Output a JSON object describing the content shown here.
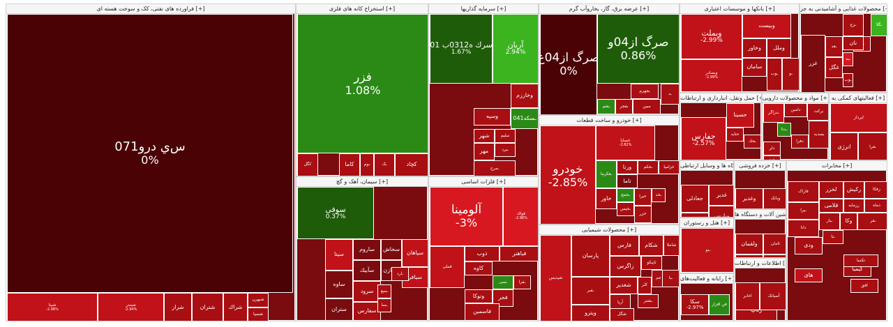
{
  "colors": {
    "deep_red": "#4a0204",
    "dark_red": "#7a0b0f",
    "red": "#a80e12",
    "mid_red": "#c01218",
    "bright_red": "#d81820",
    "dark_green": "#1f5c0a",
    "green": "#2b8a16",
    "bright_green": "#3bb41f",
    "neutral": "#8a0a0e"
  },
  "sectors": [
    {
      "title": "فراورده های نفتی، کک و سوخت هسته ای [+]"
    },
    {
      "title": "استخراج کانه های فلزی [+]"
    },
    {
      "title": "سرمایه گذاریها [+]"
    },
    {
      "title": "عرضه برق، گاز، بخاروآب گرم [+]"
    },
    {
      "title": "بانکها و موسسات اعتباری [+]"
    },
    {
      "title": "محصولات غذایی و آشامیدنی به جز [+]"
    },
    {
      "title": "سیمان، آهک و گچ [+]"
    },
    {
      "title": "فلزات اساسی [+]"
    },
    {
      "title": "خودرو و ساخت قطعات [+]"
    },
    {
      "title": "حمل ونقل، انبارداری و ارتباطات [+]"
    },
    {
      "title": "مواد و محصولات دارویی [+]"
    },
    {
      "title": "فعالیتهای کمکی به [+]"
    },
    {
      "title": "محصولات شیمیایی [+]"
    },
    {
      "title": "ساخت دستگاه ها و وسایل ارتباطی [+]"
    },
    {
      "title": "هتل و رستوران [+]"
    },
    {
      "title": "خرده فروشی [+]"
    },
    {
      "title": "ماشین آلات و دستگاه ها [+]"
    },
    {
      "title": "رایانه و فعالیت‌های [+]"
    },
    {
      "title": "اطلاعات و ارتباطات [+]"
    },
    {
      "title": "مخابرات [+]"
    }
  ],
  "tiles": [
    {
      "name": "س‌ي درو071",
      "pct": "0%"
    },
    {
      "name": "شپنا",
      "pct": "-2.98%"
    },
    {
      "name": "شبندر",
      "pct": "-2.94%"
    },
    {
      "name": "شراز",
      "pct": ""
    },
    {
      "name": "شتران",
      "pct": ""
    },
    {
      "name": "شراك",
      "pct": ""
    },
    {
      "name": "شبهرن",
      "pct": ""
    },
    {
      "name": "شسپا",
      "pct": ""
    },
    {
      "name": "فزر",
      "pct": "1.08%"
    },
    {
      "name": "کگل",
      "pct": ""
    },
    {
      "name": "کاما",
      "pct": ""
    },
    {
      "name": "کچاد",
      "pct": ""
    },
    {
      "name": "ـک",
      "pct": ""
    },
    {
      "name": "ـوم",
      "pct": ""
    },
    {
      "name": "سرك ه0312ب 01",
      "pct": "1.67%"
    },
    {
      "name": "آریان",
      "pct": "2.94%"
    },
    {
      "name": "وخارزم",
      "pct": ""
    },
    {
      "name": "وسپه",
      "pct": ""
    },
    {
      "name": "ـسکه041",
      "pct": ""
    },
    {
      "name": "شهر",
      "pct": ""
    },
    {
      "name": "سلیم",
      "pct": ""
    },
    {
      "name": "مهر",
      "pct": ""
    },
    {
      "name": "ـیرد",
      "pct": ""
    },
    {
      "name": "ـمرج",
      "pct": ""
    },
    {
      "name": "صرگ ‌از04غ",
      "pct": "0%"
    },
    {
      "name": "صرگ ‌از04و",
      "pct": "0.86%"
    },
    {
      "name": "بجهرم",
      "pct": ""
    },
    {
      "name": "بفجر",
      "pct": ""
    },
    {
      "name": "مبین",
      "pct": ""
    },
    {
      "name": "ـشم",
      "pct": ""
    },
    {
      "name": "ـد",
      "pct": ""
    },
    {
      "name": "وبملت",
      "pct": "-2.99%"
    },
    {
      "name": "وبیست",
      "pct": ""
    },
    {
      "name": "وخاور",
      "pct": ""
    },
    {
      "name": "وملل",
      "pct": ""
    },
    {
      "name": "سامان",
      "pct": ""
    },
    {
      "name": "وبصادر",
      "pct": "-2.99%"
    },
    {
      "name": "ـو",
      "pct": ""
    },
    {
      "name": "ـوب",
      "pct": ""
    },
    {
      "name": "غزر",
      "pct": ""
    },
    {
      "name": "ـزع",
      "pct": ""
    },
    {
      "name": "ـگلا",
      "pct": ""
    },
    {
      "name": "ـغا",
      "pct": ""
    },
    {
      "name": "غگل",
      "pct": ""
    },
    {
      "name": "نان",
      "pct": ""
    },
    {
      "name": "ـعد",
      "pct": ""
    },
    {
      "name": "ـبه",
      "pct": ""
    },
    {
      "name": "ـوب",
      "pct": ""
    },
    {
      "name": "سوفی",
      "pct": "0.37%"
    },
    {
      "name": "سیتا",
      "pct": ""
    },
    {
      "name": "ساروم",
      "pct": ""
    },
    {
      "name": "سخاش",
      "pct": ""
    },
    {
      "name": "سپاهان",
      "pct": ""
    },
    {
      "name": "ساوه",
      "pct": ""
    },
    {
      "name": "سرود",
      "pct": ""
    },
    {
      "name": "سمازن",
      "pct": ""
    },
    {
      "name": "سفارس",
      "pct": ""
    },
    {
      "name": "ستران",
      "pct": ""
    },
    {
      "name": "سآبیك",
      "pct": ""
    },
    {
      "name": "سیافر",
      "pct": ""
    },
    {
      "name": "ـسع",
      "pct": ""
    },
    {
      "name": "ـارد",
      "pct": ""
    },
    {
      "name": "ـسا",
      "pct": ""
    },
    {
      "name": "فولاد",
      "pct": "-2.96%"
    },
    {
      "name": "آلومينا",
      "pct": "-3%"
    },
    {
      "name": "ذوب",
      "pct": ""
    },
    {
      "name": "فباهنر",
      "pct": ""
    },
    {
      "name": "فملی",
      "pct": ""
    },
    {
      "name": "کاوه",
      "pct": ""
    },
    {
      "name": "ونوکا",
      "pct": ""
    },
    {
      "name": "فجر",
      "pct": ""
    },
    {
      "name": "فاسمین",
      "pct": ""
    },
    {
      "name": "ـفرا",
      "pct": ""
    },
    {
      "name": "ـسی",
      "pct": ""
    },
    {
      "name": "خودرو",
      "pct": "-2.85%"
    },
    {
      "name": "خساپا",
      "pct": "-2.82%"
    },
    {
      "name": "ـعکرما",
      "pct": ""
    },
    {
      "name": "ـخکم",
      "pct": ""
    },
    {
      "name": "خزامیا",
      "pct": ""
    },
    {
      "name": "ورنا",
      "pct": ""
    },
    {
      "name": "تاما",
      "pct": ""
    },
    {
      "name": "خاور",
      "pct": ""
    },
    {
      "name": "خیرا",
      "pct": ""
    },
    {
      "name": "ـخمح",
      "pct": ""
    },
    {
      "name": "خزر",
      "pct": ""
    },
    {
      "name": "ـخپس",
      "pct": ""
    },
    {
      "name": "ـخد",
      "pct": ""
    },
    {
      "name": "حفارس",
      "pct": "-2.57%"
    },
    {
      "name": "حسینا",
      "pct": ""
    },
    {
      "name": "حتاید",
      "pct": ""
    },
    {
      "name": "ـحك",
      "pct": ""
    },
    {
      "name": "ـدزاگر",
      "pct": ""
    },
    {
      "name": "دامین",
      "pct": ""
    },
    {
      "name": "برکت",
      "pct": ""
    },
    {
      "name": "دفرا",
      "pct": ""
    },
    {
      "name": "دلر",
      "pct": ""
    },
    {
      "name": "پخش",
      "pct": ""
    },
    {
      "name": "ـدتا",
      "pct": ""
    },
    {
      "name": "بسدید",
      "pct": ""
    },
    {
      "name": "اپرداز",
      "pct": ""
    },
    {
      "name": "ـفرا",
      "pct": ""
    },
    {
      "name": "انرژی",
      "pct": ""
    },
    {
      "name": "پارسان",
      "pct": ""
    },
    {
      "name": "شپدیس",
      "pct": ""
    },
    {
      "name": "فارس",
      "pct": ""
    },
    {
      "name": "شکام",
      "pct": ""
    },
    {
      "name": "شاملا",
      "pct": ""
    },
    {
      "name": "زاگرس",
      "pct": ""
    },
    {
      "name": "تاپیکو",
      "pct": ""
    },
    {
      "name": "شغدیر",
      "pct": ""
    },
    {
      "name": "جم",
      "pct": ""
    },
    {
      "name": "کلر",
      "pct": ""
    },
    {
      "name": "آریا",
      "pct": ""
    },
    {
      "name": "ویترو",
      "pct": ""
    },
    {
      "name": "شگل",
      "pct": ""
    },
    {
      "name": "ـبا",
      "pct": ""
    },
    {
      "name": "ـشتر",
      "pct": ""
    },
    {
      "name": "ـفبر",
      "pct": ""
    },
    {
      "name": "ـنو",
      "pct": ""
    },
    {
      "name": "سکا",
      "pct": "-2.97%"
    },
    {
      "name": "فن افزار",
      "pct": ""
    },
    {
      "name": "رتاپ",
      "pct": ""
    },
    {
      "name": "آسیاتک",
      "pct": ""
    },
    {
      "name": "اخابر",
      "pct": ""
    },
    {
      "name": "های",
      "pct": ""
    },
    {
      "name": "کیمیا",
      "pct": ""
    },
    {
      "name": "افق",
      "pct": ""
    },
    {
      "name": "تکمبا",
      "pct": ""
    },
    {
      "name": "جعادلی",
      "pct": ""
    },
    {
      "name": "غدیر",
      "pct": ""
    },
    {
      "name": "وغدیر",
      "pct": ""
    },
    {
      "name": "ثشاهد",
      "pct": ""
    },
    {
      "name": "وبانک",
      "pct": ""
    },
    {
      "name": "وپارس",
      "pct": ""
    },
    {
      "name": "کرمان",
      "pct": ""
    },
    {
      "name": "ثامان",
      "pct": ""
    },
    {
      "name": "ولقمان",
      "pct": ""
    },
    {
      "name": "کبرا",
      "pct": ""
    },
    {
      "name": "ـلک",
      "pct": ""
    },
    {
      "name": "لخزر",
      "pct": ""
    },
    {
      "name": "قلامی",
      "pct": ""
    },
    {
      "name": "فاراک",
      "pct": ""
    },
    {
      "name": "رکیش",
      "pct": ""
    },
    {
      "name": "زفکا",
      "pct": ""
    },
    {
      "name": "رزمایه",
      "pct": ""
    },
    {
      "name": "ذماه",
      "pct": ""
    },
    {
      "name": "ـپرا",
      "pct": ""
    },
    {
      "name": "ـفر",
      "pct": ""
    },
    {
      "name": "وکا",
      "pct": ""
    },
    {
      "name": "ـبار",
      "pct": ""
    },
    {
      "name": "دانا",
      "pct": ""
    },
    {
      "name": "ودی",
      "pct": ""
    },
    {
      "name": "ـتا",
      "pct": ""
    },
    {
      "name": "ـفق",
      "pct": ""
    },
    {
      "name": "پکویر",
      "pct": ""
    },
    {
      "name": "ـیك",
      "pct": ""
    }
  ]
}
